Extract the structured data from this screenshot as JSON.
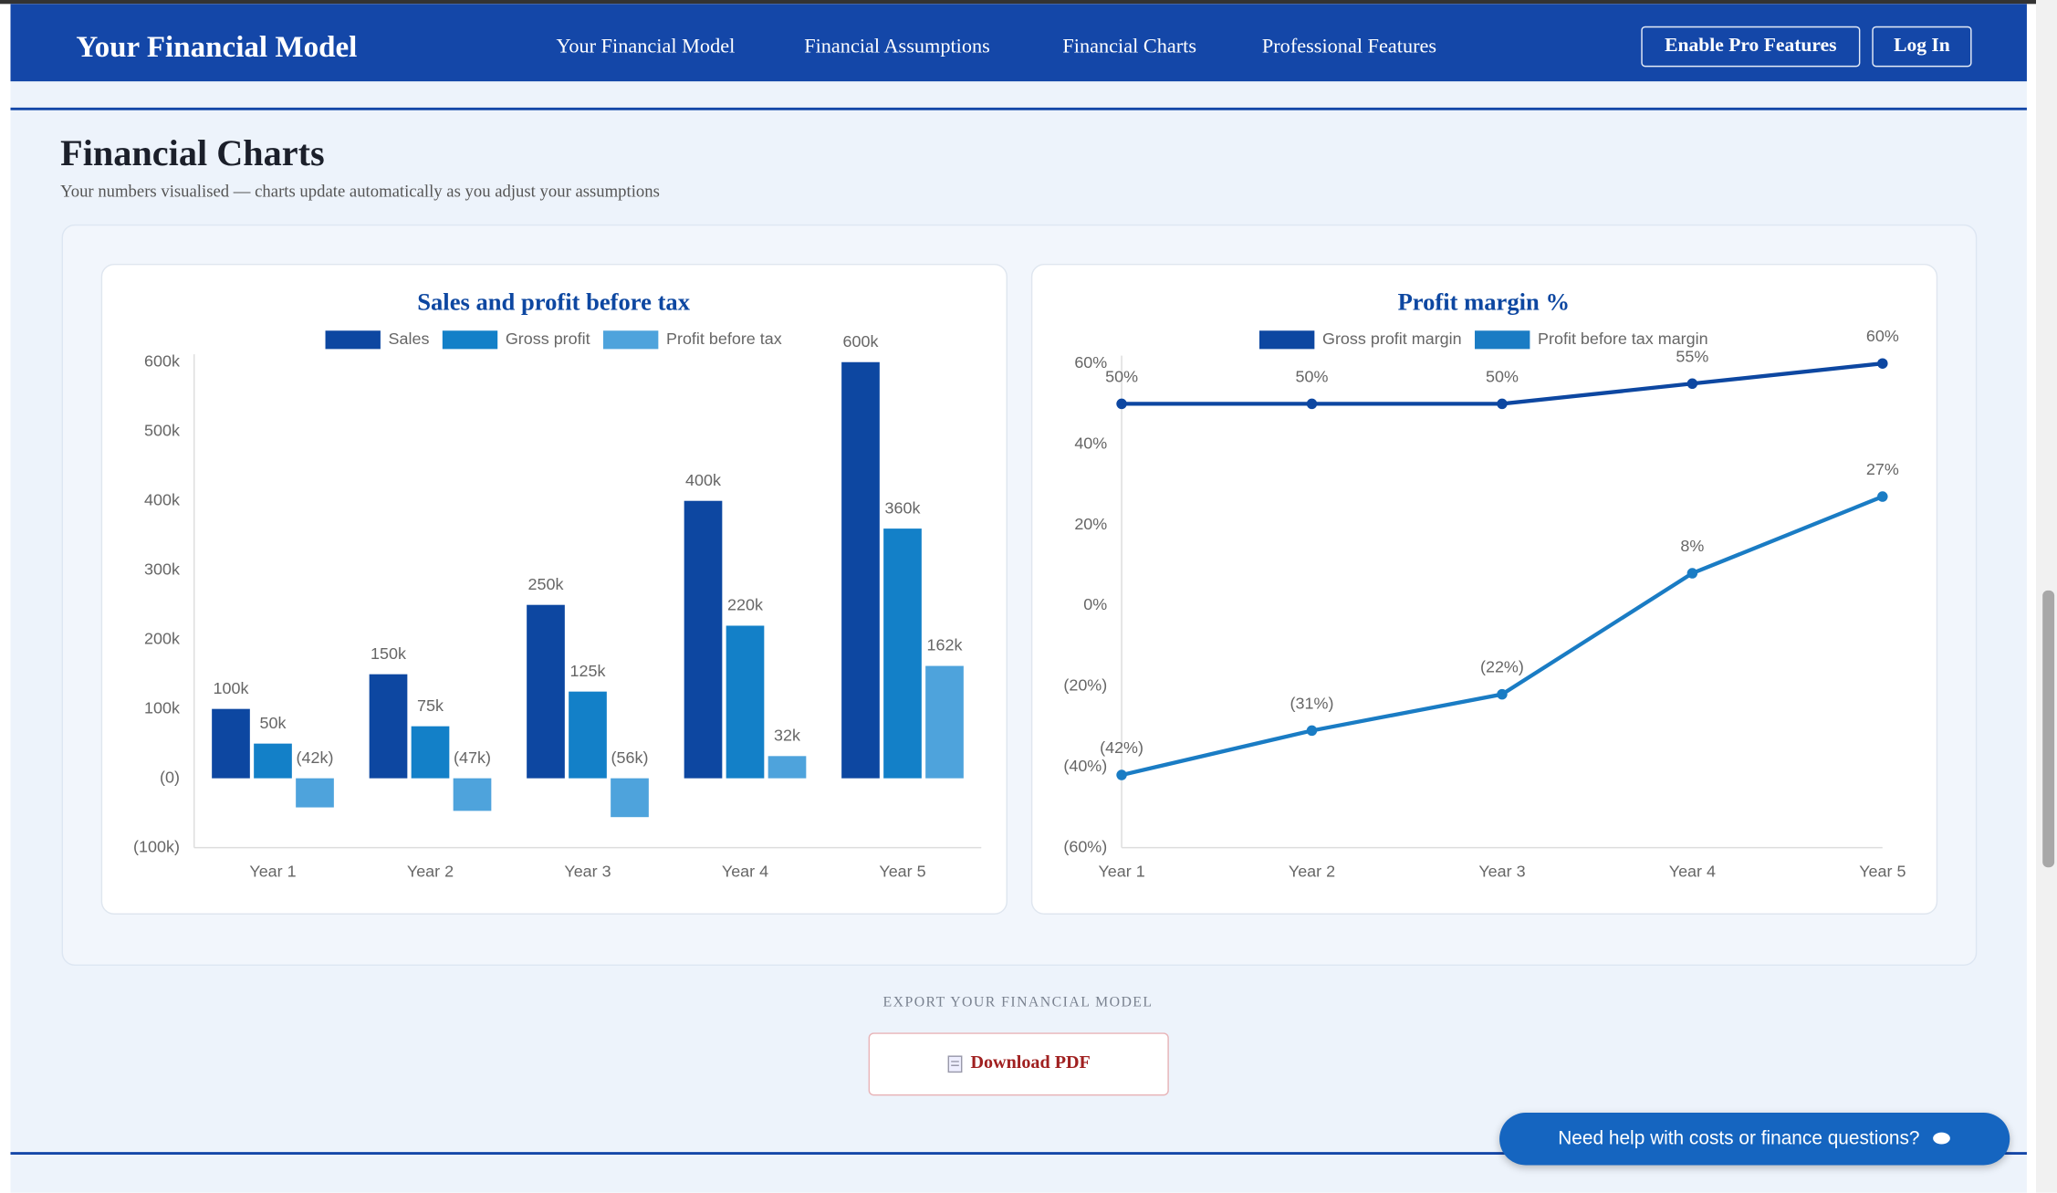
{
  "nav": {
    "brand": "Your Financial Model",
    "links": [
      "Your Financial Model",
      "Financial Assumptions",
      "Financial Charts",
      "Professional Features"
    ],
    "buttons": [
      "Enable Pro Features",
      "Log In"
    ]
  },
  "header": {
    "title": "Financial Charts",
    "subtitle": "Your numbers visualised — charts update automatically as you adjust your assumptions"
  },
  "chart_data": [
    {
      "type": "bar",
      "title": "Sales and profit before tax",
      "categories": [
        "Year 1",
        "Year 2",
        "Year 3",
        "Year 4",
        "Year 5"
      ],
      "series": [
        {
          "name": "Sales",
          "color": "#0d47a1",
          "values": [
            100000,
            150000,
            250000,
            400000,
            600000
          ],
          "value_labels": [
            "100k",
            "150k",
            "250k",
            "400k",
            "600k"
          ]
        },
        {
          "name": "Gross profit",
          "color": "#1380c8",
          "values": [
            50000,
            75000,
            125000,
            220000,
            360000
          ],
          "value_labels": [
            "50k",
            "75k",
            "125k",
            "220k",
            "360k"
          ]
        },
        {
          "name": "Profit before tax",
          "color": "#4ea3dc",
          "values": [
            -42000,
            -47000,
            -56000,
            32000,
            162000
          ],
          "value_labels": [
            "(42k)",
            "(47k)",
            "(56k)",
            "32k",
            "162k"
          ]
        }
      ],
      "ylim": [
        -100000,
        600000
      ],
      "yticks": [
        {
          "value": -100000,
          "label": "(100k)"
        },
        {
          "value": 0,
          "label": "(0)"
        },
        {
          "value": 100000,
          "label": "100k"
        },
        {
          "value": 200000,
          "label": "200k"
        },
        {
          "value": 300000,
          "label": "300k"
        },
        {
          "value": 400000,
          "label": "400k"
        },
        {
          "value": 500000,
          "label": "500k"
        },
        {
          "value": 600000,
          "label": "600k"
        }
      ],
      "grid": false
    },
    {
      "type": "line",
      "title": "Profit margin %",
      "categories": [
        "Year 1",
        "Year 2",
        "Year 3",
        "Year 4",
        "Year 5"
      ],
      "series": [
        {
          "name": "Gross profit margin",
          "color": "#0d47a1",
          "values": [
            50,
            50,
            50,
            55,
            60
          ],
          "value_labels": [
            "50%",
            "50%",
            "50%",
            "55%",
            "60%"
          ]
        },
        {
          "name": "Profit before tax margin",
          "color": "#1a7cc4",
          "values": [
            -42,
            -31,
            -22,
            8,
            27
          ],
          "value_labels": [
            "(42%)",
            "(31%)",
            "(22%)",
            "8%",
            "27%"
          ]
        }
      ],
      "ylim": [
        -60,
        60
      ],
      "yticks": [
        {
          "value": -60,
          "label": "(60%)"
        },
        {
          "value": -40,
          "label": "(40%)"
        },
        {
          "value": -20,
          "label": "(20%)"
        },
        {
          "value": 0,
          "label": "0%"
        },
        {
          "value": 20,
          "label": "20%"
        },
        {
          "value": 40,
          "label": "40%"
        },
        {
          "value": 60,
          "label": "60%"
        }
      ],
      "grid": false
    }
  ],
  "export": {
    "label": "EXPORT YOUR FINANCIAL MODEL",
    "button": "Download PDF"
  },
  "chat": {
    "button": "Need help with costs or finance questions?"
  }
}
